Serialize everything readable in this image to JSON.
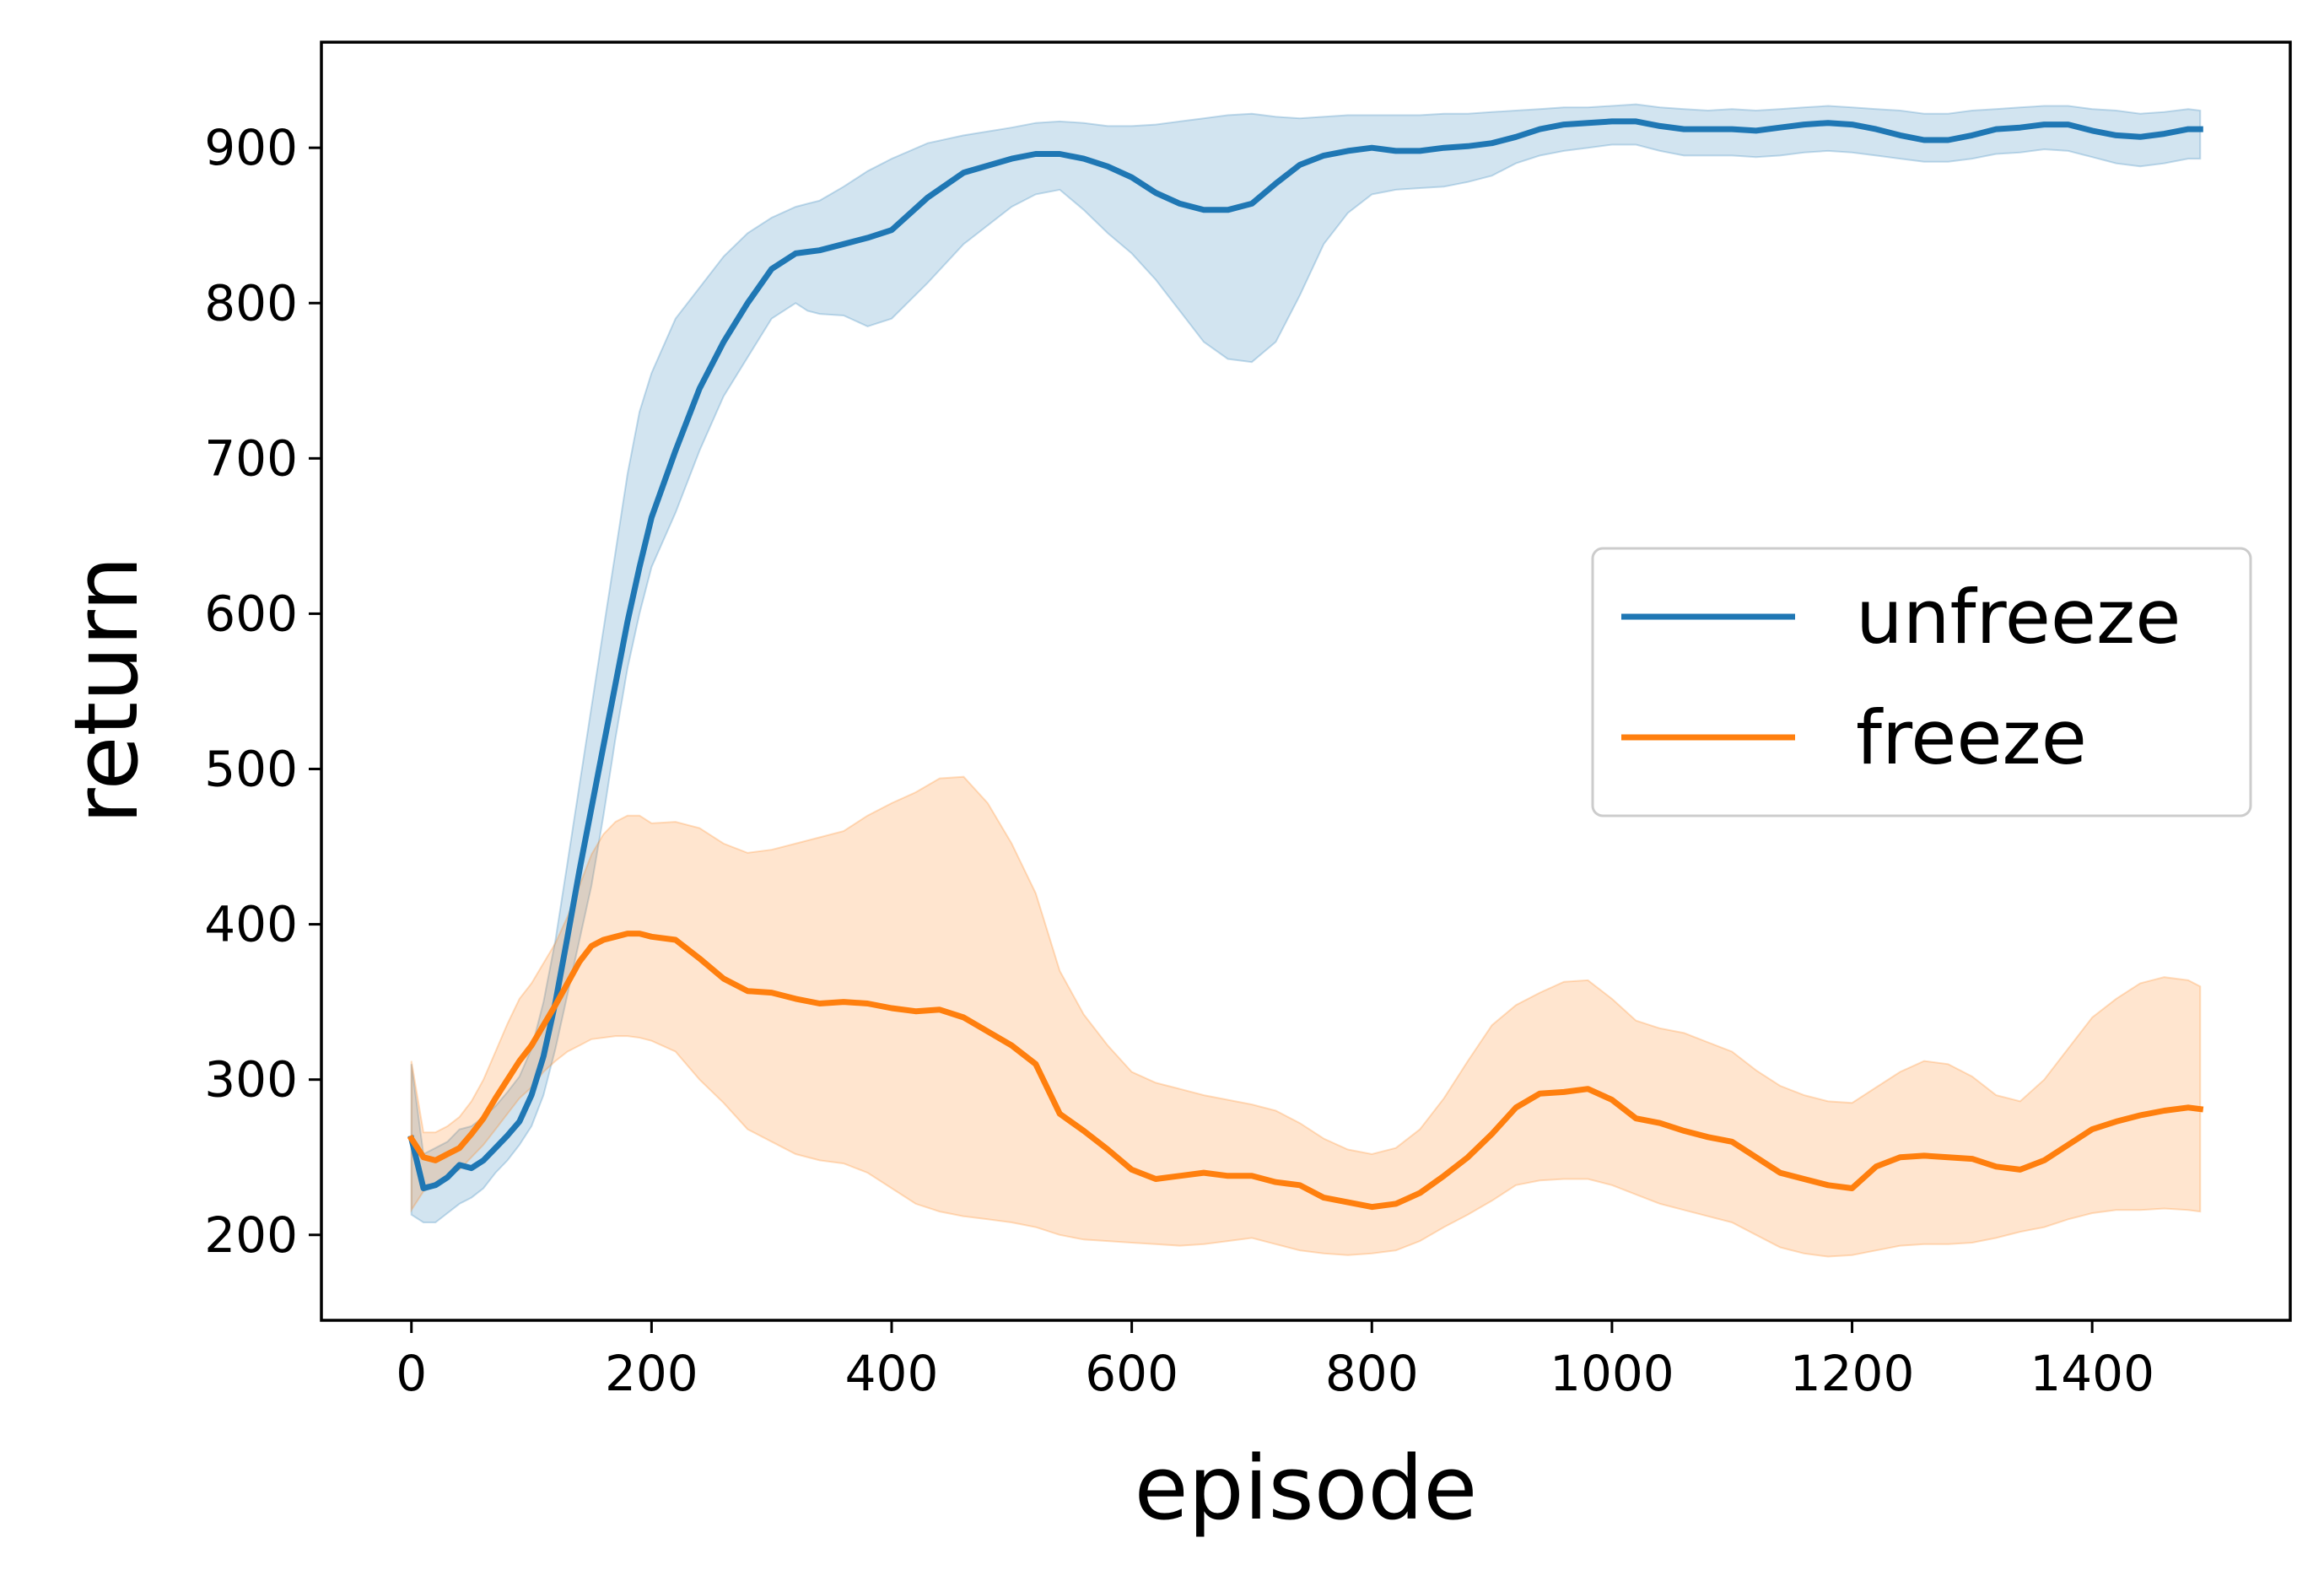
{
  "chart_data": {
    "type": "line",
    "title": "",
    "xlabel": "episode",
    "ylabel": "return",
    "xlim": [
      -75,
      1565
    ],
    "ylim": [
      145,
      968
    ],
    "xticks": [
      0,
      200,
      400,
      600,
      800,
      1000,
      1200,
      1400
    ],
    "xtick_labels": [
      "0",
      "200",
      "400",
      "600",
      "800",
      "1000",
      "1200",
      "1400"
    ],
    "yticks": [
      200,
      300,
      400,
      500,
      600,
      700,
      800,
      900
    ],
    "ytick_labels": [
      "200",
      "300",
      "400",
      "500",
      "600",
      "700",
      "800",
      "900"
    ],
    "grid": false,
    "legend": {
      "position": "center-right",
      "entries": [
        "unfreeze",
        "freeze"
      ]
    },
    "series": [
      {
        "name": "unfreeze",
        "color": "#1f77b4",
        "band_color": "#1f77b4",
        "x": [
          0,
          10,
          20,
          30,
          40,
          50,
          60,
          70,
          80,
          90,
          100,
          110,
          120,
          130,
          140,
          150,
          160,
          170,
          180,
          190,
          200,
          220,
          240,
          260,
          280,
          300,
          320,
          330,
          340,
          360,
          380,
          400,
          430,
          460,
          500,
          520,
          540,
          560,
          580,
          600,
          620,
          640,
          660,
          680,
          700,
          720,
          740,
          760,
          780,
          800,
          820,
          840,
          860,
          880,
          900,
          920,
          940,
          960,
          980,
          1000,
          1020,
          1040,
          1060,
          1080,
          1100,
          1120,
          1140,
          1160,
          1180,
          1200,
          1220,
          1240,
          1260,
          1280,
          1300,
          1320,
          1340,
          1360,
          1380,
          1400,
          1420,
          1440,
          1460,
          1480,
          1490
        ],
        "mean": [
          262,
          230,
          232,
          237,
          245,
          243,
          248,
          256,
          264,
          273,
          290,
          315,
          350,
          392,
          435,
          475,
          515,
          555,
          595,
          630,
          662,
          705,
          745,
          775,
          800,
          822,
          832,
          833,
          834,
          838,
          842,
          847,
          868,
          884,
          893,
          896,
          896,
          893,
          888,
          881,
          871,
          864,
          860,
          860,
          864,
          877,
          889,
          895,
          898,
          900,
          898,
          898,
          900,
          901,
          903,
          907,
          912,
          915,
          916,
          917,
          917,
          914,
          912,
          912,
          912,
          911,
          913,
          915,
          916,
          915,
          912,
          908,
          905,
          905,
          908,
          912,
          913,
          915,
          915,
          911,
          908,
          907,
          909,
          912,
          912
        ],
        "lower": [
          213,
          208,
          208,
          214,
          220,
          224,
          230,
          240,
          248,
          258,
          270,
          290,
          320,
          355,
          390,
          425,
          470,
          520,
          565,
          600,
          630,
          665,
          705,
          740,
          765,
          790,
          800,
          795,
          793,
          792,
          785,
          790,
          813,
          838,
          862,
          870,
          873,
          860,
          845,
          832,
          815,
          795,
          775,
          764,
          762,
          775,
          805,
          838,
          858,
          870,
          873,
          874,
          875,
          878,
          882,
          890,
          895,
          898,
          900,
          902,
          902,
          898,
          895,
          895,
          895,
          894,
          895,
          897,
          898,
          897,
          895,
          893,
          891,
          891,
          893,
          896,
          897,
          899,
          898,
          894,
          890,
          888,
          890,
          893,
          893
        ],
        "upper": [
          310,
          252,
          256,
          260,
          268,
          270,
          276,
          283,
          292,
          302,
          320,
          350,
          390,
          440,
          490,
          540,
          590,
          640,
          690,
          730,
          755,
          790,
          810,
          830,
          845,
          855,
          862,
          864,
          866,
          875,
          885,
          893,
          903,
          908,
          913,
          916,
          917,
          916,
          914,
          914,
          915,
          917,
          919,
          921,
          922,
          920,
          919,
          920,
          921,
          921,
          921,
          921,
          922,
          922,
          923,
          924,
          925,
          926,
          926,
          927,
          928,
          926,
          925,
          924,
          925,
          924,
          925,
          926,
          927,
          926,
          925,
          924,
          922,
          922,
          924,
          925,
          926,
          927,
          927,
          925,
          924,
          922,
          923,
          925,
          924
        ]
      },
      {
        "name": "freeze",
        "color": "#ff7f0e",
        "band_color": "#ff7f0e",
        "x": [
          0,
          10,
          20,
          30,
          40,
          50,
          60,
          70,
          80,
          90,
          100,
          110,
          120,
          130,
          140,
          150,
          160,
          170,
          180,
          190,
          200,
          220,
          240,
          260,
          280,
          300,
          320,
          340,
          360,
          380,
          400,
          420,
          440,
          460,
          480,
          500,
          520,
          540,
          560,
          580,
          600,
          620,
          640,
          660,
          680,
          700,
          720,
          740,
          760,
          780,
          800,
          820,
          840,
          860,
          880,
          900,
          920,
          940,
          960,
          980,
          1000,
          1020,
          1040,
          1060,
          1080,
          1100,
          1120,
          1140,
          1160,
          1180,
          1200,
          1220,
          1240,
          1260,
          1280,
          1300,
          1320,
          1340,
          1360,
          1380,
          1400,
          1420,
          1440,
          1460,
          1480,
          1490
        ],
        "mean": [
          262,
          250,
          248,
          252,
          256,
          265,
          275,
          288,
          300,
          312,
          322,
          335,
          348,
          362,
          376,
          386,
          390,
          392,
          394,
          394,
          392,
          390,
          378,
          365,
          357,
          356,
          352,
          349,
          350,
          349,
          346,
          344,
          345,
          340,
          331,
          322,
          310,
          278,
          267,
          255,
          242,
          236,
          238,
          240,
          238,
          238,
          234,
          232,
          224,
          221,
          218,
          220,
          227,
          238,
          250,
          265,
          282,
          291,
          292,
          294,
          287,
          275,
          272,
          267,
          263,
          260,
          250,
          240,
          236,
          232,
          230,
          244,
          250,
          251,
          250,
          249,
          244,
          242,
          248,
          258,
          268,
          273,
          277,
          280,
          282,
          281
        ],
        "lower": [
          216,
          228,
          232,
          238,
          242,
          250,
          258,
          268,
          278,
          288,
          295,
          305,
          312,
          318,
          322,
          326,
          327,
          328,
          328,
          327,
          325,
          318,
          300,
          285,
          268,
          260,
          252,
          248,
          246,
          240,
          230,
          220,
          215,
          212,
          210,
          208,
          205,
          200,
          197,
          196,
          195,
          194,
          193,
          194,
          196,
          198,
          194,
          190,
          188,
          187,
          188,
          190,
          196,
          205,
          213,
          222,
          232,
          235,
          236,
          236,
          232,
          226,
          220,
          216,
          212,
          208,
          200,
          192,
          188,
          186,
          187,
          190,
          193,
          194,
          194,
          195,
          198,
          202,
          205,
          210,
          214,
          216,
          216,
          217,
          216,
          215
        ],
        "upper": [
          312,
          266,
          266,
          270,
          276,
          286,
          300,
          318,
          336,
          352,
          362,
          375,
          388,
          405,
          425,
          445,
          458,
          466,
          470,
          470,
          465,
          466,
          462,
          452,
          446,
          448,
          452,
          456,
          460,
          470,
          478,
          485,
          494,
          495,
          478,
          452,
          420,
          370,
          342,
          322,
          305,
          298,
          294,
          290,
          287,
          284,
          280,
          272,
          262,
          255,
          252,
          256,
          268,
          288,
          312,
          335,
          348,
          356,
          363,
          364,
          352,
          338,
          333,
          330,
          324,
          318,
          306,
          296,
          290,
          286,
          285,
          295,
          305,
          312,
          310,
          302,
          290,
          286,
          300,
          320,
          340,
          352,
          362,
          366,
          364,
          360
        ]
      }
    ]
  }
}
